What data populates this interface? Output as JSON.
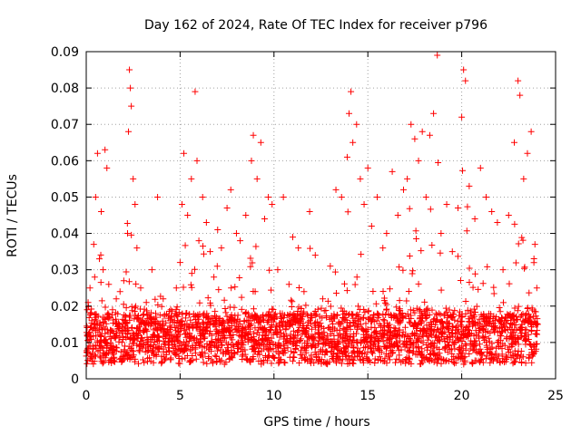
{
  "chart_data": {
    "type": "scatter",
    "title": "Day 162 of 2024, Rate Of TEC Index for receiver p796",
    "xlabel": "GPS time / hours",
    "ylabel": "ROTI / TECUs",
    "xlim": [
      0,
      25
    ],
    "ylim": [
      0,
      0.09
    ],
    "x_ticks": [
      0,
      5,
      10,
      15,
      20,
      25
    ],
    "x_tick_labels": [
      "0",
      "5",
      "10",
      "15",
      "20",
      "25"
    ],
    "y_ticks": [
      0,
      0.01,
      0.02,
      0.03,
      0.04,
      0.05,
      0.06,
      0.07,
      0.08,
      0.09
    ],
    "y_tick_labels": [
      "0",
      "0.01",
      "0.02",
      "0.03",
      "0.04",
      "0.05",
      "0.06",
      "0.07",
      "0.08",
      "0.09"
    ],
    "grid": true,
    "marker": "+",
    "color": "#ff0000",
    "series": [
      {
        "name": "ROTI",
        "points": [
          [
            0.05,
            0.012
          ],
          [
            0.1,
            0.021
          ],
          [
            0.15,
            0.009
          ],
          [
            0.2,
            0.025
          ],
          [
            0.3,
            0.016
          ],
          [
            0.4,
            0.037
          ],
          [
            0.45,
            0.028
          ],
          [
            0.5,
            0.05
          ],
          [
            0.6,
            0.062
          ],
          [
            0.7,
            0.033
          ],
          [
            0.8,
            0.046
          ],
          [
            0.9,
            0.03
          ],
          [
            1.0,
            0.063
          ],
          [
            1.1,
            0.058
          ],
          [
            1.2,
            0.026
          ],
          [
            1.4,
            0.019
          ],
          [
            1.6,
            0.022
          ],
          [
            1.8,
            0.024
          ],
          [
            2.0,
            0.027
          ],
          [
            2.2,
            0.04
          ],
          [
            2.25,
            0.068
          ],
          [
            2.3,
            0.085
          ],
          [
            2.35,
            0.08
          ],
          [
            2.4,
            0.075
          ],
          [
            2.5,
            0.055
          ],
          [
            2.6,
            0.048
          ],
          [
            2.7,
            0.036
          ],
          [
            2.9,
            0.025
          ],
          [
            3.2,
            0.021
          ],
          [
            3.5,
            0.03
          ],
          [
            3.8,
            0.05
          ],
          [
            4.1,
            0.022
          ],
          [
            4.5,
            0.019
          ],
          [
            4.8,
            0.025
          ],
          [
            5.0,
            0.032
          ],
          [
            5.1,
            0.048
          ],
          [
            5.2,
            0.062
          ],
          [
            5.4,
            0.045
          ],
          [
            5.6,
            0.055
          ],
          [
            5.8,
            0.079
          ],
          [
            5.9,
            0.06
          ],
          [
            6.0,
            0.038
          ],
          [
            6.2,
            0.05
          ],
          [
            6.4,
            0.043
          ],
          [
            6.6,
            0.035
          ],
          [
            6.8,
            0.028
          ],
          [
            7.0,
            0.041
          ],
          [
            7.2,
            0.036
          ],
          [
            7.5,
            0.047
          ],
          [
            7.7,
            0.052
          ],
          [
            8.0,
            0.04
          ],
          [
            8.2,
            0.038
          ],
          [
            8.5,
            0.045
          ],
          [
            8.8,
            0.06
          ],
          [
            8.9,
            0.067
          ],
          [
            9.1,
            0.055
          ],
          [
            9.3,
            0.065
          ],
          [
            9.5,
            0.044
          ],
          [
            9.7,
            0.05
          ],
          [
            9.9,
            0.048
          ],
          [
            10.2,
            0.03
          ],
          [
            10.5,
            0.05
          ],
          [
            10.8,
            0.026
          ],
          [
            11.0,
            0.039
          ],
          [
            11.3,
            0.036
          ],
          [
            11.6,
            0.024
          ],
          [
            11.9,
            0.046
          ],
          [
            12.2,
            0.034
          ],
          [
            12.6,
            0.022
          ],
          [
            13.0,
            0.031
          ],
          [
            13.3,
            0.052
          ],
          [
            13.6,
            0.05
          ],
          [
            13.9,
            0.061
          ],
          [
            14.0,
            0.073
          ],
          [
            14.1,
            0.079
          ],
          [
            14.2,
            0.065
          ],
          [
            14.4,
            0.07
          ],
          [
            14.6,
            0.055
          ],
          [
            14.8,
            0.048
          ],
          [
            15.0,
            0.058
          ],
          [
            15.2,
            0.042
          ],
          [
            15.5,
            0.05
          ],
          [
            15.8,
            0.036
          ],
          [
            16.0,
            0.04
          ],
          [
            16.3,
            0.057
          ],
          [
            16.6,
            0.045
          ],
          [
            16.9,
            0.052
          ],
          [
            17.1,
            0.055
          ],
          [
            17.3,
            0.07
          ],
          [
            17.5,
            0.066
          ],
          [
            17.7,
            0.06
          ],
          [
            17.9,
            0.068
          ],
          [
            18.1,
            0.05
          ],
          [
            18.3,
            0.067
          ],
          [
            18.5,
            0.073
          ],
          [
            18.7,
            0.089
          ],
          [
            18.9,
            0.04
          ],
          [
            19.2,
            0.048
          ],
          [
            19.5,
            0.035
          ],
          [
            19.8,
            0.047
          ],
          [
            20.0,
            0.072
          ],
          [
            20.1,
            0.085
          ],
          [
            20.2,
            0.082
          ],
          [
            20.4,
            0.053
          ],
          [
            20.7,
            0.044
          ],
          [
            21.0,
            0.058
          ],
          [
            21.3,
            0.05
          ],
          [
            21.6,
            0.046
          ],
          [
            21.9,
            0.043
          ],
          [
            22.2,
            0.03
          ],
          [
            22.5,
            0.045
          ],
          [
            22.8,
            0.065
          ],
          [
            23.0,
            0.082
          ],
          [
            23.1,
            0.078
          ],
          [
            23.3,
            0.055
          ],
          [
            23.5,
            0.062
          ],
          [
            23.7,
            0.068
          ],
          [
            23.9,
            0.037
          ],
          [
            24.0,
            0.025
          ],
          [
            24.05,
            0.015
          ]
        ],
        "note": "Dense baseline cluster between 0.003 and 0.025 TECU across 0-24 h (thousands of samples)"
      }
    ]
  }
}
